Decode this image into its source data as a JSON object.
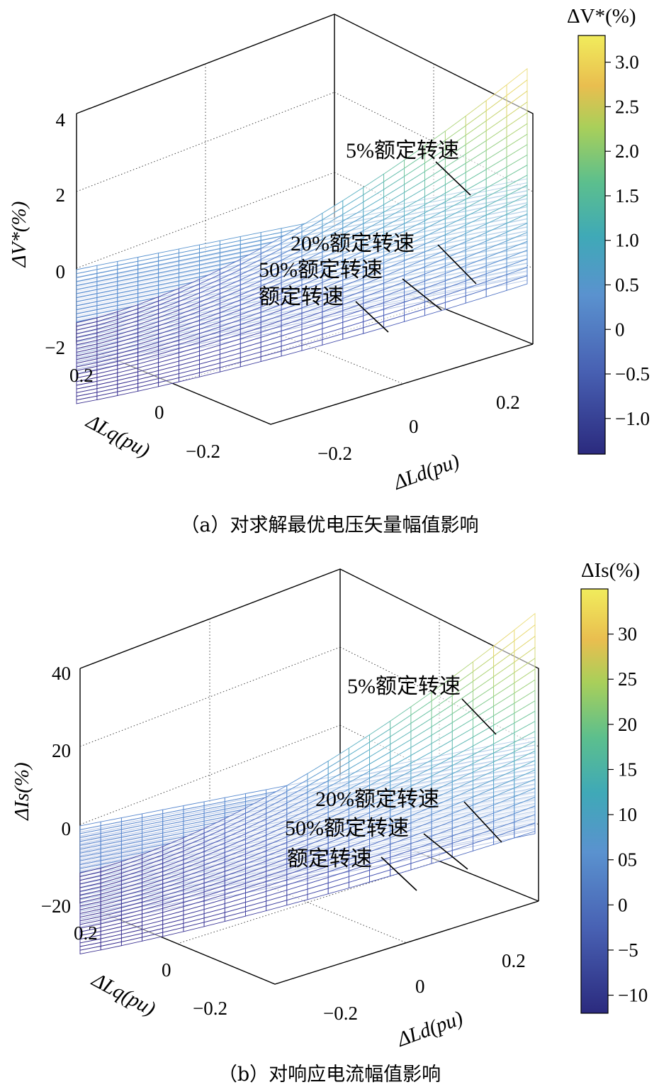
{
  "chart_data": [
    {
      "type": "surface",
      "zlabel": "ΔV*(%)",
      "xlabel": "ΔLd(pu)",
      "ylabel": "ΔLq(pu)",
      "x_ticks": [
        "−0.2",
        "0",
        "0.2"
      ],
      "y_ticks": [
        "0.2",
        "0",
        "−0.2"
      ],
      "z_ticks": [
        "4",
        "2",
        "0",
        "−2"
      ],
      "zlim": [
        -2,
        4
      ],
      "xlim": [
        -0.3,
        0.3
      ],
      "ylim": [
        -0.3,
        0.3
      ],
      "colorbar": {
        "label": "ΔV*(%)",
        "ticks": [
          "3.0",
          "2.5",
          "2.0",
          "1.5",
          "1.0",
          "0.5",
          "0",
          "−0.5",
          "−1.0"
        ],
        "range": [
          -1.4,
          3.3
        ]
      },
      "series": [
        {
          "name": "5%额定转速",
          "corner_values": {
            "front_min": -1.4,
            "back_max": 3.2
          }
        },
        {
          "name": "20%额定转速",
          "corner_values": {
            "front_min": -0.2,
            "back_max": 0.3
          }
        },
        {
          "name": "50%额定转速",
          "corner_values": {
            "front_min": -0.4,
            "back_max": 0.1
          }
        },
        {
          "name": "额定转速",
          "corner_values": {
            "front_min": -0.6,
            "back_max": 0.0
          }
        }
      ],
      "caption": "（a）对求解最优电压矢量幅值影响"
    },
    {
      "type": "surface",
      "zlabel": "ΔIs(%)",
      "xlabel": "ΔLd(pu)",
      "ylabel": "ΔLq(pu)",
      "x_ticks": [
        "−0.2",
        "0",
        "0.2"
      ],
      "y_ticks": [
        "0.2",
        "0",
        "−0.2"
      ],
      "z_ticks": [
        "40",
        "20",
        "0",
        "−20"
      ],
      "zlim": [
        -20,
        40
      ],
      "xlim": [
        -0.3,
        0.3
      ],
      "ylim": [
        -0.3,
        0.3
      ],
      "colorbar": {
        "label": "ΔIs(%)",
        "ticks": [
          "30",
          "25",
          "20",
          "15",
          "10",
          "05",
          "0",
          "−5",
          "−10"
        ],
        "range": [
          -12,
          35
        ]
      },
      "series": [
        {
          "name": "5%额定转速",
          "corner_values": {
            "front_min": -12,
            "back_max": 34
          }
        },
        {
          "name": "20%额定转速",
          "corner_values": {
            "front_min": -1,
            "back_max": 2
          }
        },
        {
          "name": "50%额定转速",
          "corner_values": {
            "front_min": -3,
            "back_max": 1
          }
        },
        {
          "name": "额定转速",
          "corner_values": {
            "front_min": -5,
            "back_max": 0
          }
        }
      ],
      "caption": "（b）对响应电流幅值影响"
    }
  ],
  "colors": {
    "colormap": [
      "#3a2f8f",
      "#4a5bb8",
      "#5b8fd2",
      "#5bb0c8",
      "#6ec6a0",
      "#a9d57a",
      "#e7d66a",
      "#f2e68c"
    ],
    "axis": "#000000"
  }
}
